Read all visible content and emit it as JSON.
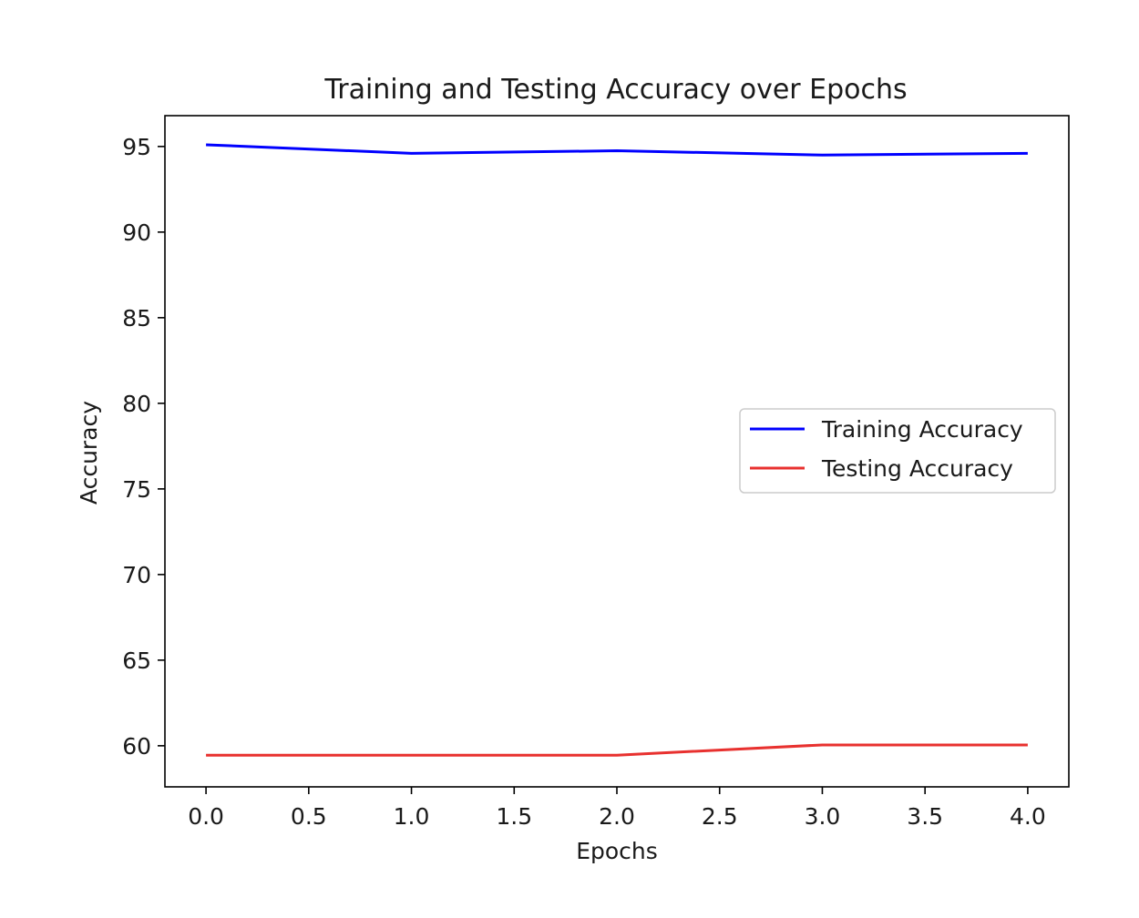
{
  "chart_data": {
    "type": "line",
    "title": "Training and Testing Accuracy over Epochs",
    "xlabel": "Epochs",
    "ylabel": "Accuracy",
    "xlim": [
      -0.2,
      4.2
    ],
    "ylim": [
      57.6,
      96.8
    ],
    "x_ticks": [
      0.0,
      0.5,
      1.0,
      1.5,
      2.0,
      2.5,
      3.0,
      3.5,
      4.0
    ],
    "x_tick_labels": [
      "0.0",
      "0.5",
      "1.0",
      "1.5",
      "2.0",
      "2.5",
      "3.0",
      "3.5",
      "4.0"
    ],
    "y_ticks": [
      60,
      65,
      70,
      75,
      80,
      85,
      90,
      95
    ],
    "y_tick_labels": [
      "60",
      "65",
      "70",
      "75",
      "80",
      "85",
      "90",
      "95"
    ],
    "x": [
      0,
      1,
      2,
      3,
      4
    ],
    "series": [
      {
        "name": "Training Accuracy",
        "color": "#0000ff",
        "values": [
          95.1,
          94.6,
          94.75,
          94.5,
          94.6
        ]
      },
      {
        "name": "Testing Accuracy",
        "color": "#e8312f",
        "values": [
          59.45,
          59.45,
          59.45,
          60.05,
          60.05
        ]
      }
    ],
    "grid": false,
    "legend_position": "center-right"
  }
}
